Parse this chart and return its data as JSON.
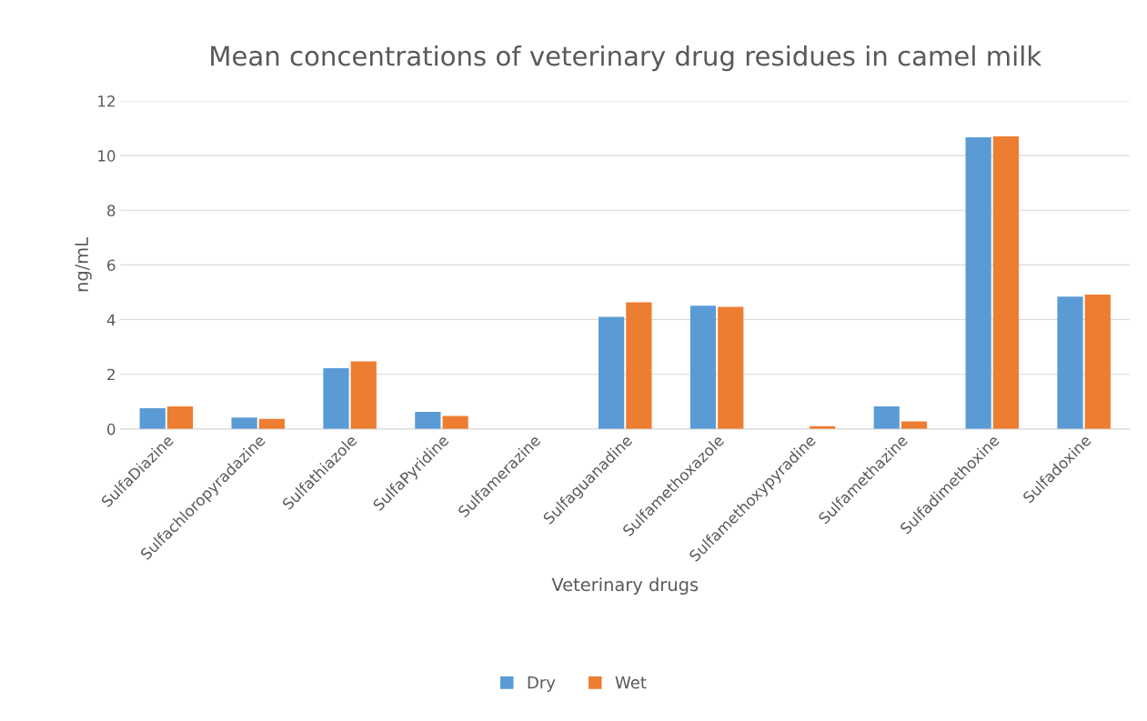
{
  "chart_data": {
    "type": "bar",
    "title": "Mean concentrations of veterinary drug residues in camel milk",
    "xlabel": "Veterinary drugs",
    "ylabel": "ng/mL",
    "categories": [
      "SulfaDiazine",
      "Sulfachloropyradazine",
      "Sulfathiazole",
      "SulfaPyridine",
      "Sulfamerazine",
      "Sulfaguanadine",
      "Sulfamethoxazole",
      "Sulfamethoxypyradine",
      "Sulfamethazine",
      "Sulfadimethoxine",
      "Sulfadoxine"
    ],
    "series": [
      {
        "name": "Dry",
        "color": "#5b9bd5",
        "values": [
          0.76,
          0.42,
          2.22,
          0.63,
          0,
          4.1,
          4.51,
          0,
          0.83,
          10.67,
          4.84
        ]
      },
      {
        "name": "Wet",
        "color": "#ed7d31",
        "values": [
          0.83,
          0.37,
          2.47,
          0.48,
          0,
          4.63,
          4.47,
          0.1,
          0.28,
          10.7,
          4.92
        ]
      }
    ],
    "ylim": [
      0,
      12
    ],
    "yticks": [
      0,
      2,
      4,
      6,
      8,
      10,
      12
    ],
    "grid": "y",
    "legend": "bottom"
  }
}
